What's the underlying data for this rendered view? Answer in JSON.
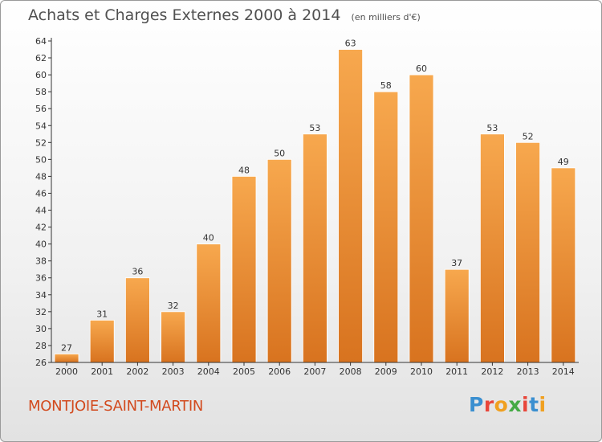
{
  "title": "Achats et Charges Externes 2000 à 2014",
  "units": "(en milliers d'€)",
  "commune": "MONTJOIE-SAINT-MARTIN",
  "brand": {
    "letters": [
      "P",
      "r",
      "o",
      "x",
      "i",
      "t",
      "i"
    ],
    "colors": [
      "#3a8fd0",
      "#e8463a",
      "#f0a020",
      "#44aa44",
      "#e8463a",
      "#3a8fd0",
      "#f0a020"
    ]
  },
  "colors": {
    "bar_light": "#f7a84e",
    "bar_dark": "#d8731f",
    "title_text": "#505050",
    "commune_text": "#d24a1e"
  },
  "chart_data": {
    "type": "bar",
    "title": "Achats et Charges Externes 2000 à 2014",
    "xlabel": "",
    "ylabel": "",
    "categories": [
      "2000",
      "2001",
      "2002",
      "2003",
      "2004",
      "2005",
      "2006",
      "2007",
      "2008",
      "2009",
      "2010",
      "2011",
      "2012",
      "2013",
      "2014"
    ],
    "values": [
      27,
      31,
      36,
      32,
      40,
      48,
      50,
      53,
      63,
      58,
      60,
      37,
      53,
      52,
      49
    ],
    "ylim": [
      26,
      64
    ],
    "yticks": [
      26,
      28,
      30,
      32,
      34,
      36,
      38,
      40,
      42,
      44,
      46,
      48,
      50,
      52,
      54,
      56,
      58,
      60,
      62,
      64
    ],
    "grid": false,
    "legend": "none"
  }
}
